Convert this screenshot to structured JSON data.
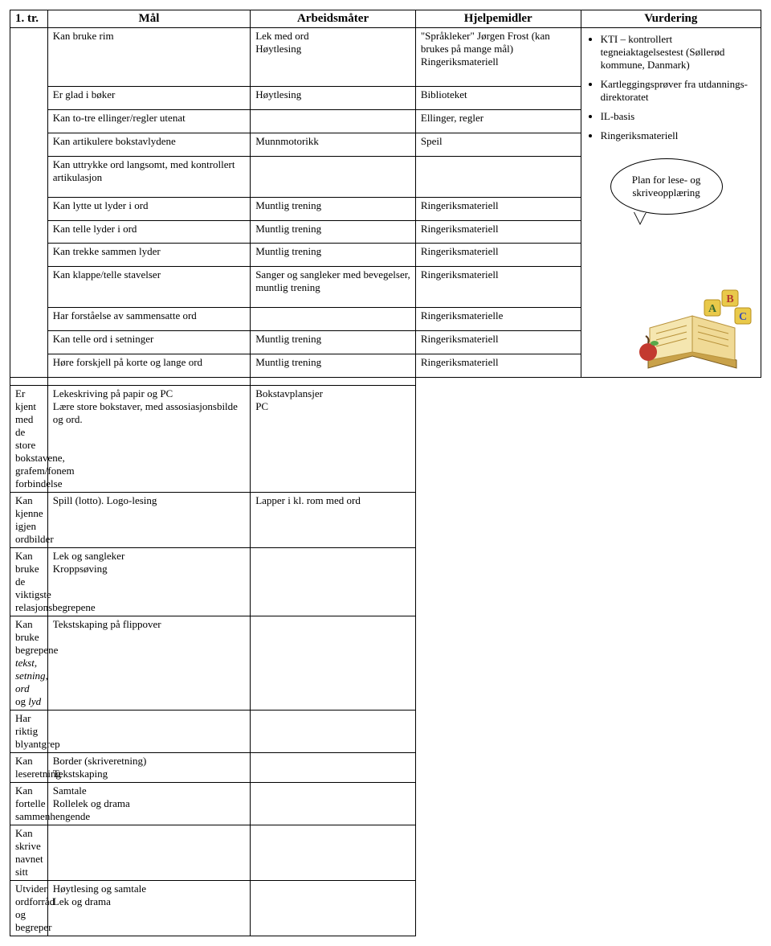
{
  "header": {
    "tr": "1. tr.",
    "mal": "Mål",
    "arbeid": "Arbeidsmåter",
    "hjelp": "Hjelpemidler",
    "vurd": "Vurdering"
  },
  "section1": [
    {
      "mal": "Kan bruke rim",
      "arb": "Lek med ord\nHøytlesing",
      "hj": "\"Språkleker\" Jørgen Frost (kan brukes på mange mål)\nRingeriksmateriell"
    },
    {
      "mal": "Er glad i bøker",
      "arb": "Høytlesing",
      "hj": "Biblioteket"
    },
    {
      "mal": "Kan to-tre ellinger/regler utenat",
      "arb": "",
      "hj": "Ellinger, regler"
    },
    {
      "mal": "Kan artikulere bokstavlydene",
      "arb": "Munnmotorikk",
      "hj": "Speil"
    },
    {
      "mal": "Kan uttrykke ord langsomt, med kontrollert artikulasjon",
      "arb": "",
      "hj": ""
    },
    {
      "mal": "Kan lytte ut lyder i ord",
      "arb": "Muntlig trening",
      "hj": "Ringeriksmateriell"
    },
    {
      "mal": "Kan telle lyder i ord",
      "arb": "Muntlig trening",
      "hj": "Ringeriksmateriell"
    },
    {
      "mal": "Kan trekke sammen lyder",
      "arb": "Muntlig trening",
      "hj": "Ringeriksmateriell"
    },
    {
      "mal": "Kan klappe/telle stavelser",
      "arb": "Sanger og sangleker med bevegelser, muntlig trening",
      "hj": "Ringeriksmateriell"
    },
    {
      "mal": "Har forståelse av sammensatte ord",
      "arb": "",
      "hj": "Ringeriksmaterielle"
    },
    {
      "mal": "Kan telle ord i setninger",
      "arb": "Muntlig trening",
      "hj": "Ringeriksmateriell"
    },
    {
      "mal": "Høre forskjell på korte og lange ord",
      "arb": "Muntlig trening",
      "hj": "Ringeriksmateriell"
    }
  ],
  "section2": [
    {
      "mal": "Er kjent med de store bokstavene, grafem/fonem forbindelse",
      "arb": "Lekeskriving på papir og PC\nLære store bokstaver, med assosiasjonsbilde og ord.",
      "hj": "Bokstavplansjer\nPC"
    },
    {
      "mal": "Kan kjenne igjen ordbilder",
      "arb": "Spill (lotto). Logo-lesing",
      "hj": "Lapper i kl. rom med ord"
    },
    {
      "mal": "Kan bruke de viktigste relasjonsbegrepene",
      "arb": "Lek og sangleker\nKroppsøving",
      "hj": ""
    },
    {
      "mal_html": "Kan bruke begrepene <span class=\"italic\">tekst, setning, ord</span> og <span class=\"italic\">lyd</span>",
      "arb": "Tekstskaping på flippover",
      "hj": ""
    },
    {
      "mal": "Har riktig blyantgrep",
      "arb": "",
      "hj": ""
    },
    {
      "mal": "Kan leseretning",
      "arb": "Border (skriveretning)\nTekstskaping",
      "hj": ""
    },
    {
      "mal": "Kan fortelle sammenhengende",
      "arb": "Samtale\nRollelek og drama",
      "hj": ""
    },
    {
      "mal": "Kan skrive navnet sitt",
      "arb": "",
      "hj": ""
    },
    {
      "mal": "Utvider ordforråd og begreper",
      "arb": "Høytlesing og samtale\nLek og drama",
      "hj": ""
    }
  ],
  "vurdering": {
    "bullets": [
      "KTI – kontrollert tegneiaktagelsestest (Søllerød kommune, Danmark)",
      "Kartleggingsprøver fra utdannings-direktoratet",
      "IL-basis",
      "Ringeriksmateriell"
    ],
    "speech": "Plan for lese- og skriveopplæring"
  }
}
